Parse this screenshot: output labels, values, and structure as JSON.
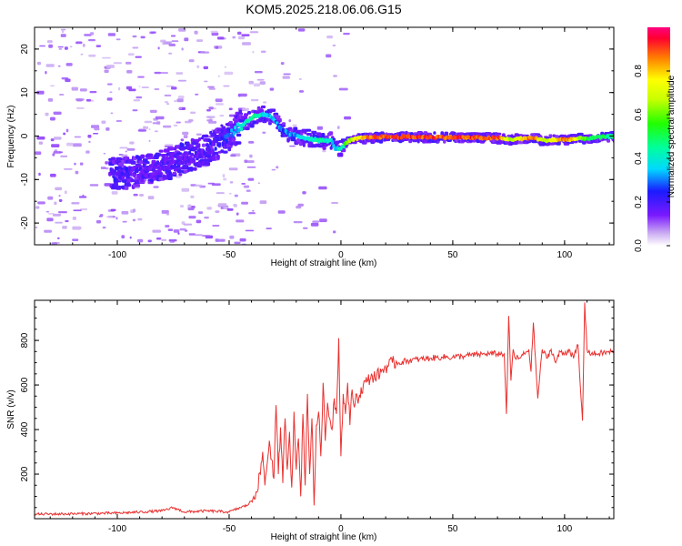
{
  "figure_title": "KOM5.2025.218.06.06.G15",
  "chart_data": [
    {
      "type": "heatmap",
      "title": "",
      "xlabel": "Height of straight line (km)",
      "ylabel": "Frequency (Hz)",
      "xlim": [
        -137,
        122
      ],
      "ylim": [
        -25,
        25
      ],
      "x_ticks": [
        -100,
        -50,
        0,
        50,
        100
      ],
      "y_ticks": [
        -20,
        -10,
        0,
        10,
        20
      ],
      "colorbar": {
        "label": "Normalized spectral amplitude",
        "range": [
          0,
          1
        ],
        "ticks": [
          0.0,
          0.2,
          0.4,
          0.6,
          0.8
        ]
      },
      "ridge": {
        "description_x_km": [
          -100,
          -90,
          -80,
          -70,
          -60,
          -52,
          -45,
          -40,
          -36,
          -32,
          -28,
          -24,
          -20,
          -15,
          -10,
          -5,
          -3,
          0,
          3,
          8,
          15,
          30,
          50,
          70,
          75,
          85,
          90,
          100,
          110,
          122
        ],
        "frequency_hz": [
          -8.5,
          -8,
          -6.5,
          -5,
          -3,
          0,
          2.5,
          4.5,
          5,
          4.5,
          2,
          0.5,
          0,
          -0.5,
          -1,
          -1,
          -3,
          -2.5,
          -1,
          -0.5,
          -0.2,
          -0.2,
          -0.3,
          -0.5,
          -0.8,
          -0.4,
          -1,
          -0.8,
          -0.5,
          0
        ],
        "amplitude": [
          0.25,
          0.22,
          0.2,
          0.2,
          0.22,
          0.3,
          0.45,
          0.5,
          0.45,
          0.4,
          0.35,
          0.35,
          0.4,
          0.45,
          0.5,
          0.45,
          0.4,
          0.5,
          0.7,
          0.85,
          0.95,
          0.95,
          0.95,
          0.95,
          0.7,
          0.95,
          0.7,
          0.95,
          0.6,
          0.5
        ]
      }
    },
    {
      "type": "line",
      "title": "",
      "xlabel": "Height of straight line (km)",
      "ylabel": "SNR (v/v)",
      "xlim": [
        -137,
        122
      ],
      "ylim": [
        0,
        980
      ],
      "x_ticks": [
        -100,
        -50,
        0,
        50,
        100
      ],
      "y_ticks": [
        200,
        400,
        600,
        800
      ],
      "color": "#e8312f",
      "series": [
        {
          "name": "SNR",
          "x": [
            -137,
            -120,
            -100,
            -90,
            -80,
            -75,
            -70,
            -60,
            -50,
            -45,
            -42,
            -40,
            -38,
            -36,
            -35,
            -34,
            -32,
            -30,
            -29,
            -28,
            -27,
            -26,
            -25,
            -24,
            -23,
            -22,
            -21,
            -20,
            -19,
            -18,
            -17,
            -16,
            -15,
            -14,
            -13,
            -12,
            -11,
            -10,
            -9,
            -8,
            -7,
            -6,
            -5,
            -4,
            -3,
            -2,
            -1,
            0,
            1,
            2,
            3,
            4,
            5,
            6,
            7,
            8,
            10,
            12,
            14,
            16,
            18,
            20,
            23,
            26,
            30,
            35,
            40,
            45,
            50,
            55,
            60,
            65,
            70,
            73,
            74,
            75,
            76,
            77,
            78,
            80,
            82,
            84,
            85,
            86,
            88,
            90,
            92,
            94,
            96,
            98,
            100,
            102,
            104,
            106,
            107,
            108,
            109,
            110,
            112,
            115,
            118,
            122
          ],
          "y": [
            20,
            22,
            25,
            30,
            35,
            50,
            30,
            35,
            30,
            50,
            60,
            80,
            120,
            200,
            300,
            150,
            350,
            180,
            510,
            200,
            410,
            160,
            450,
            220,
            390,
            140,
            480,
            220,
            360,
            100,
            470,
            150,
            560,
            200,
            450,
            60,
            420,
            480,
            280,
            610,
            350,
            520,
            450,
            400,
            540,
            470,
            810,
            280,
            560,
            470,
            610,
            420,
            580,
            500,
            560,
            540,
            600,
            620,
            640,
            640,
            660,
            680,
            700,
            700,
            710,
            715,
            720,
            725,
            725,
            730,
            735,
            740,
            740,
            740,
            470,
            910,
            620,
            760,
            720,
            720,
            740,
            760,
            660,
            880,
            540,
            760,
            720,
            760,
            700,
            750,
            740,
            760,
            720,
            780,
            600,
            440,
            970,
            760,
            740,
            740,
            745,
            750
          ]
        }
      ]
    }
  ]
}
